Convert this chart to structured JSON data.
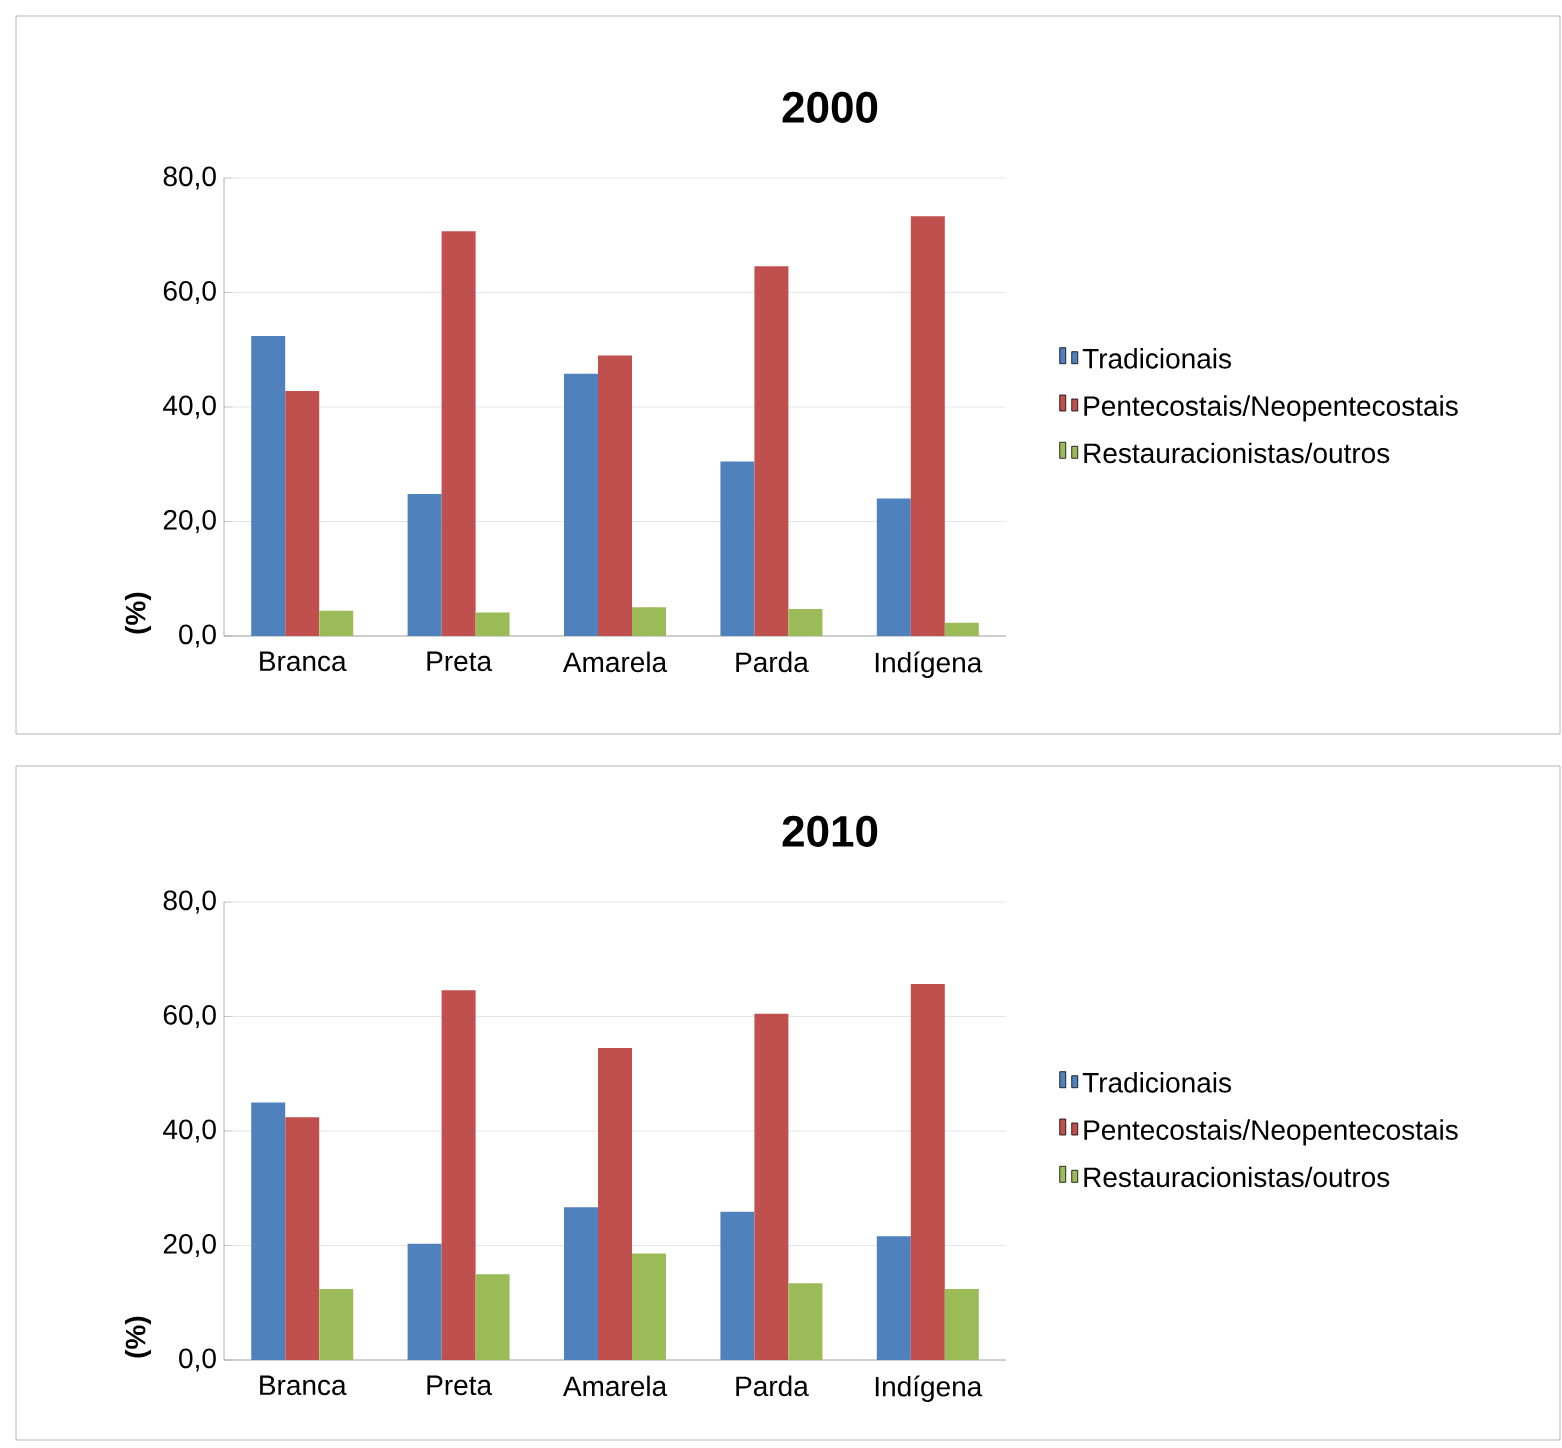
{
  "chart_data": [
    {
      "type": "bar",
      "title": "2000",
      "ylabel": "(%)",
      "categories": [
        "Branca",
        "Preta",
        "Amarela",
        "Parda",
        "Indígena"
      ],
      "series": [
        {
          "name": "Tradicionais",
          "color": "#4f81bd",
          "values": [
            52.4,
            24.8,
            45.8,
            30.5,
            24.0
          ]
        },
        {
          "name": "Pentecostais/Neopentecostais",
          "color": "#c0504d",
          "values": [
            42.8,
            70.7,
            49.0,
            64.6,
            73.3
          ]
        },
        {
          "name": "Restauracionistas/outros",
          "color": "#9bbb59",
          "values": [
            4.4,
            4.1,
            5.0,
            4.7,
            2.3
          ]
        }
      ],
      "ylim": [
        0,
        80
      ],
      "yticks": [
        {
          "value": 0,
          "label": "0,0"
        },
        {
          "value": 20,
          "label": "20,0"
        },
        {
          "value": 40,
          "label": "40,0"
        },
        {
          "value": 60,
          "label": "60,0"
        },
        {
          "value": 80,
          "label": "80,0"
        }
      ],
      "grid": "y",
      "legend": "right"
    },
    {
      "type": "bar",
      "title": "2010",
      "ylabel": "(%)",
      "categories": [
        "Branca",
        "Preta",
        "Amarela",
        "Parda",
        "Indígena"
      ],
      "series": [
        {
          "name": "Tradicionais",
          "color": "#4f81bd",
          "values": [
            45.0,
            20.3,
            26.7,
            25.9,
            21.6
          ]
        },
        {
          "name": "Pentecostais/Neopentecostais",
          "color": "#c0504d",
          "values": [
            42.4,
            64.6,
            54.5,
            60.5,
            65.7
          ]
        },
        {
          "name": "Restauracionistas/outros",
          "color": "#9bbb59",
          "values": [
            12.4,
            15.0,
            18.6,
            13.4,
            12.4
          ]
        }
      ],
      "ylim": [
        0,
        80
      ],
      "yticks": [
        {
          "value": 0,
          "label": "0,0"
        },
        {
          "value": 20,
          "label": "20,0"
        },
        {
          "value": 40,
          "label": "40,0"
        },
        {
          "value": 60,
          "label": "60,0"
        },
        {
          "value": 80,
          "label": "80,0"
        }
      ],
      "grid": "y",
      "legend": "right"
    }
  ]
}
